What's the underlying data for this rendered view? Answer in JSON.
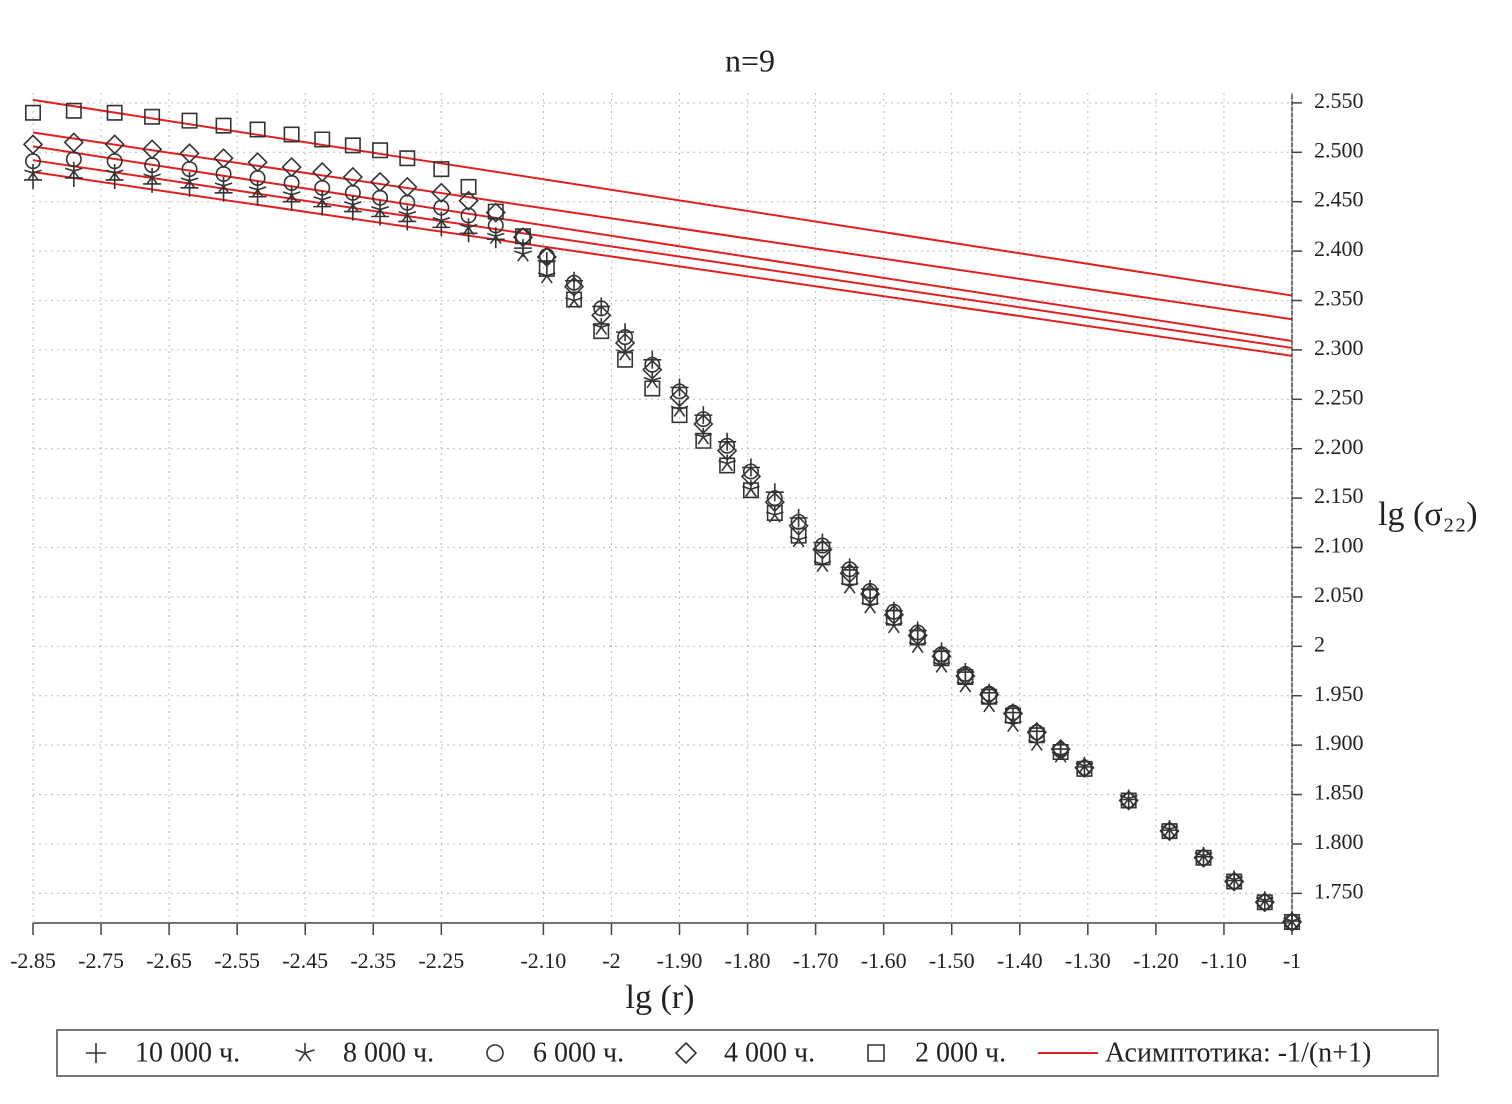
{
  "chart_data": {
    "type": "scatter",
    "title": "n=9",
    "xlabel": "lg (r)",
    "ylabel": "lg (σ₂₂)",
    "xlim": [
      -2.85,
      -1
    ],
    "ylim": [
      1.72,
      2.56
    ],
    "grid": true,
    "xticks": [
      -2.85,
      -2.75,
      -2.65,
      -2.55,
      -2.45,
      -2.35,
      -2.25,
      {
        "value": -2.1,
        "label": "-2.10"
      },
      -2,
      {
        "value": -1.9,
        "label": "-1.90"
      },
      {
        "value": -1.8,
        "label": "-1.80"
      },
      {
        "value": -1.7,
        "label": "-1.70"
      },
      {
        "value": -1.6,
        "label": "-1.60"
      },
      {
        "value": -1.5,
        "label": "-1.50"
      },
      {
        "value": -1.4,
        "label": "-1.40"
      },
      {
        "value": -1.3,
        "label": "-1.30"
      },
      {
        "value": -1.2,
        "label": "-1.20"
      },
      {
        "value": -1.1,
        "label": "-1.10"
      },
      -1
    ],
    "yticks": [
      {
        "value": 1.75,
        "label": "1.750"
      },
      {
        "value": 1.8,
        "label": "1.800"
      },
      {
        "value": 1.85,
        "label": "1.850"
      },
      {
        "value": 1.9,
        "label": "1.900"
      },
      {
        "value": 1.95,
        "label": "1.950"
      },
      2,
      {
        "value": 2.05,
        "label": "2.050"
      },
      {
        "value": 2.1,
        "label": "2.100"
      },
      {
        "value": 2.15,
        "label": "2.150"
      },
      {
        "value": 2.2,
        "label": "2.200"
      },
      {
        "value": 2.25,
        "label": "2.250"
      },
      {
        "value": 2.3,
        "label": "2.300"
      },
      {
        "value": 2.35,
        "label": "2.350"
      },
      {
        "value": 2.4,
        "label": "2.400"
      },
      {
        "value": 2.45,
        "label": "2.450"
      },
      {
        "value": 2.5,
        "label": "2.500"
      },
      {
        "value": 2.55,
        "label": "2.550"
      }
    ],
    "x": [
      -2.85,
      -2.79,
      -2.73,
      -2.675,
      -2.62,
      -2.57,
      -2.52,
      -2.47,
      -2.425,
      -2.38,
      -2.34,
      -2.3,
      -2.25,
      -2.21,
      -2.17,
      -2.13,
      -2.095,
      -2.055,
      -2.015,
      -1.98,
      -1.94,
      -1.9,
      -1.865,
      -1.83,
      -1.795,
      -1.76,
      -1.725,
      -1.69,
      -1.65,
      -1.62,
      -1.585,
      -1.55,
      -1.515,
      -1.48,
      -1.445,
      -1.41,
      -1.375,
      -1.34,
      -1.305,
      -1.24,
      -1.18,
      -1.13,
      -1.085,
      -1.04,
      -1.0
    ],
    "series": [
      {
        "name": "10 000 ч.",
        "marker": "plus",
        "color": "#333333",
        "values": [
          2.472,
          2.474,
          2.472,
          2.468,
          2.464,
          2.459,
          2.455,
          2.45,
          2.445,
          2.44,
          2.435,
          2.43,
          2.424,
          2.418,
          2.412,
          2.403,
          2.39,
          2.37,
          2.344,
          2.318,
          2.29,
          2.262,
          2.234,
          2.207,
          2.181,
          2.156,
          2.13,
          2.105,
          2.08,
          2.058,
          2.036,
          2.016,
          1.995,
          1.974,
          1.953,
          1.933,
          1.914,
          1.896,
          1.878,
          1.845,
          1.814,
          1.787,
          1.763,
          1.742,
          1.722
        ]
      },
      {
        "name": "8 000 ч.",
        "marker": "star",
        "color": "#333333",
        "values": [
          2.479,
          2.481,
          2.479,
          2.475,
          2.471,
          2.466,
          2.462,
          2.457,
          2.452,
          2.447,
          2.442,
          2.437,
          2.431,
          2.424,
          2.415,
          2.397,
          2.375,
          2.35,
          2.323,
          2.297,
          2.269,
          2.24,
          2.212,
          2.185,
          2.159,
          2.133,
          2.108,
          2.083,
          2.061,
          2.041,
          2.021,
          2.001,
          1.981,
          1.961,
          1.941,
          1.921,
          1.902,
          1.89,
          1.879,
          1.846,
          1.815,
          1.788,
          1.764,
          1.743,
          1.722
        ]
      },
      {
        "name": "6 000 ч.",
        "marker": "circle",
        "color": "#333333",
        "values": [
          2.491,
          2.493,
          2.491,
          2.487,
          2.483,
          2.478,
          2.474,
          2.469,
          2.464,
          2.459,
          2.454,
          2.449,
          2.444,
          2.436,
          2.426,
          2.415,
          2.395,
          2.368,
          2.342,
          2.313,
          2.285,
          2.258,
          2.23,
          2.203,
          2.177,
          2.15,
          2.126,
          2.102,
          2.078,
          2.056,
          2.035,
          2.014,
          1.992,
          1.972,
          1.952,
          1.933,
          1.913,
          1.895,
          1.877,
          1.844,
          1.813,
          1.786,
          1.762,
          1.741,
          1.721
        ]
      },
      {
        "name": "4 000 ч.",
        "marker": "diamond",
        "color": "#333333",
        "values": [
          2.508,
          2.51,
          2.508,
          2.503,
          2.499,
          2.494,
          2.49,
          2.485,
          2.48,
          2.475,
          2.47,
          2.465,
          2.459,
          2.451,
          2.439,
          2.414,
          2.394,
          2.364,
          2.335,
          2.307,
          2.28,
          2.252,
          2.225,
          2.198,
          2.172,
          2.146,
          2.122,
          2.098,
          2.074,
          2.053,
          2.032,
          2.011,
          1.99,
          1.97,
          1.951,
          1.932,
          1.913,
          1.896,
          1.877,
          1.844,
          1.813,
          1.786,
          1.762,
          1.741,
          1.721
        ]
      },
      {
        "name": "2 000 ч.",
        "marker": "square",
        "color": "#333333",
        "values": [
          2.54,
          2.542,
          2.54,
          2.536,
          2.532,
          2.527,
          2.523,
          2.518,
          2.513,
          2.507,
          2.502,
          2.494,
          2.483,
          2.465,
          2.44,
          2.415,
          2.382,
          2.351,
          2.319,
          2.29,
          2.261,
          2.234,
          2.208,
          2.183,
          2.158,
          2.135,
          2.112,
          2.09,
          2.07,
          2.05,
          2.029,
          2.009,
          1.988,
          1.969,
          1.949,
          1.93,
          1.91,
          1.893,
          1.876,
          1.844,
          1.813,
          1.786,
          1.762,
          1.741,
          1.721
        ]
      }
    ],
    "asymptotes": {
      "name": "Асимптотика: -1/(n+1)",
      "color": "#e02020",
      "x": [
        -2.85,
        -1
      ],
      "lines": [
        [
          2.553,
          2.355
        ],
        [
          2.52,
          2.331
        ],
        [
          2.506,
          2.309
        ],
        [
          2.492,
          2.302
        ],
        [
          2.48,
          2.294
        ]
      ]
    }
  }
}
